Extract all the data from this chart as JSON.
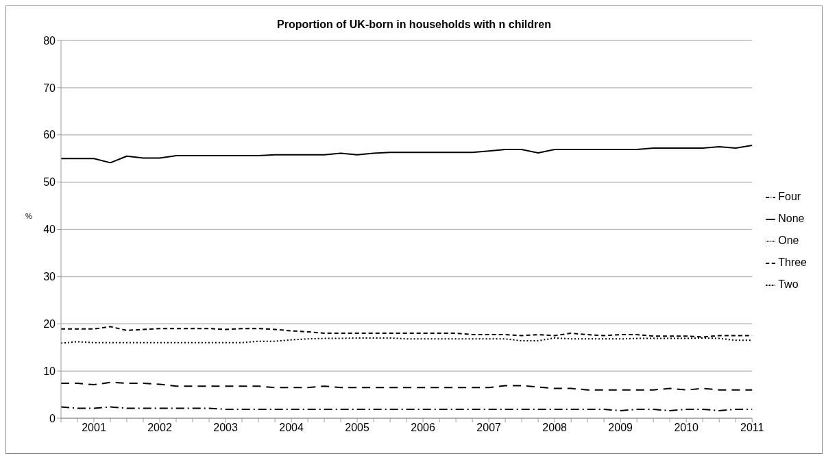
{
  "chart_data": {
    "type": "line",
    "title": "Proportion of UK-born in households with n children",
    "ylabel": "%",
    "categories": [
      null,
      null,
      "2001",
      null,
      null,
      null,
      "2002",
      null,
      null,
      null,
      "2003",
      null,
      null,
      null,
      "2004",
      null,
      null,
      null,
      "2005",
      null,
      null,
      null,
      "2006",
      null,
      null,
      null,
      "2007",
      null,
      null,
      null,
      "2008",
      null,
      null,
      null,
      "2009",
      null,
      null,
      null,
      "2010",
      null,
      null,
      null,
      "2011"
    ],
    "series": [
      {
        "name": "None",
        "color": "#000000",
        "line_style": "solid",
        "values": [
          55.0,
          55.0,
          55.0,
          54.1,
          55.5,
          55.1,
          55.1,
          55.6,
          55.6,
          55.6,
          55.6,
          55.6,
          55.6,
          55.8,
          55.8,
          55.8,
          55.8,
          56.1,
          55.8,
          56.1,
          56.3,
          56.3,
          56.3,
          56.3,
          56.3,
          56.3,
          56.6,
          56.9,
          56.9,
          56.2,
          56.9,
          56.9,
          56.9,
          56.9,
          56.9,
          56.9,
          57.2,
          57.2,
          57.2,
          57.2,
          57.5,
          57.2,
          57.8
        ]
      },
      {
        "name": "One",
        "color": "#000000",
        "line_style": "dotted",
        "values": [
          15.9,
          16.2,
          16.0,
          16.0,
          16.0,
          16.0,
          16.0,
          16.0,
          16.0,
          16.0,
          16.0,
          16.0,
          16.3,
          16.3,
          16.6,
          16.8,
          16.9,
          16.9,
          17.0,
          17.0,
          17.0,
          16.8,
          16.8,
          16.8,
          16.8,
          16.8,
          16.8,
          16.8,
          16.4,
          16.4,
          17.0,
          16.8,
          16.8,
          16.8,
          16.8,
          16.9,
          16.9,
          16.9,
          16.9,
          17.0,
          16.9,
          16.5,
          16.5
        ]
      },
      {
        "name": "Two",
        "color": "#000000",
        "line_style": "dashed",
        "values": [
          18.9,
          18.9,
          18.9,
          19.4,
          18.6,
          18.8,
          19.0,
          19.0,
          19.0,
          19.0,
          18.8,
          19.0,
          19.0,
          18.8,
          18.5,
          18.3,
          18.0,
          18.0,
          18.0,
          18.0,
          18.0,
          18.0,
          18.0,
          18.0,
          18.0,
          17.7,
          17.7,
          17.7,
          17.5,
          17.7,
          17.5,
          18.0,
          17.7,
          17.5,
          17.7,
          17.7,
          17.4,
          17.4,
          17.4,
          17.2,
          17.5,
          17.5,
          17.5
        ]
      },
      {
        "name": "Three",
        "color": "#000000",
        "line_style": "dashed",
        "values": [
          7.4,
          7.4,
          7.1,
          7.6,
          7.4,
          7.4,
          7.2,
          6.8,
          6.8,
          6.8,
          6.8,
          6.8,
          6.8,
          6.5,
          6.5,
          6.5,
          6.8,
          6.5,
          6.5,
          6.5,
          6.5,
          6.5,
          6.5,
          6.5,
          6.5,
          6.5,
          6.5,
          6.9,
          6.9,
          6.6,
          6.3,
          6.3,
          6.0,
          6.0,
          6.0,
          6.0,
          6.0,
          6.3,
          6.0,
          6.3,
          6.0,
          6.0,
          6.0
        ]
      },
      {
        "name": "Four",
        "color": "#000000",
        "line_style": "dashed",
        "values": [
          2.4,
          2.1,
          2.1,
          2.4,
          2.1,
          2.1,
          2.1,
          2.1,
          2.1,
          2.1,
          1.9,
          1.9,
          1.9,
          1.9,
          1.9,
          1.9,
          1.9,
          1.9,
          1.9,
          1.9,
          1.9,
          1.9,
          1.9,
          1.9,
          1.9,
          1.9,
          1.9,
          1.9,
          1.9,
          1.9,
          1.9,
          1.9,
          1.9,
          1.9,
          1.6,
          1.9,
          1.9,
          1.6,
          1.9,
          1.9,
          1.6,
          1.9,
          1.9
        ]
      }
    ],
    "ylim": [
      0,
      80
    ],
    "yticks": [
      0,
      10,
      20,
      30,
      40,
      50,
      60,
      70,
      80
    ],
    "grid": "y",
    "legend": "right",
    "marker": "none"
  }
}
